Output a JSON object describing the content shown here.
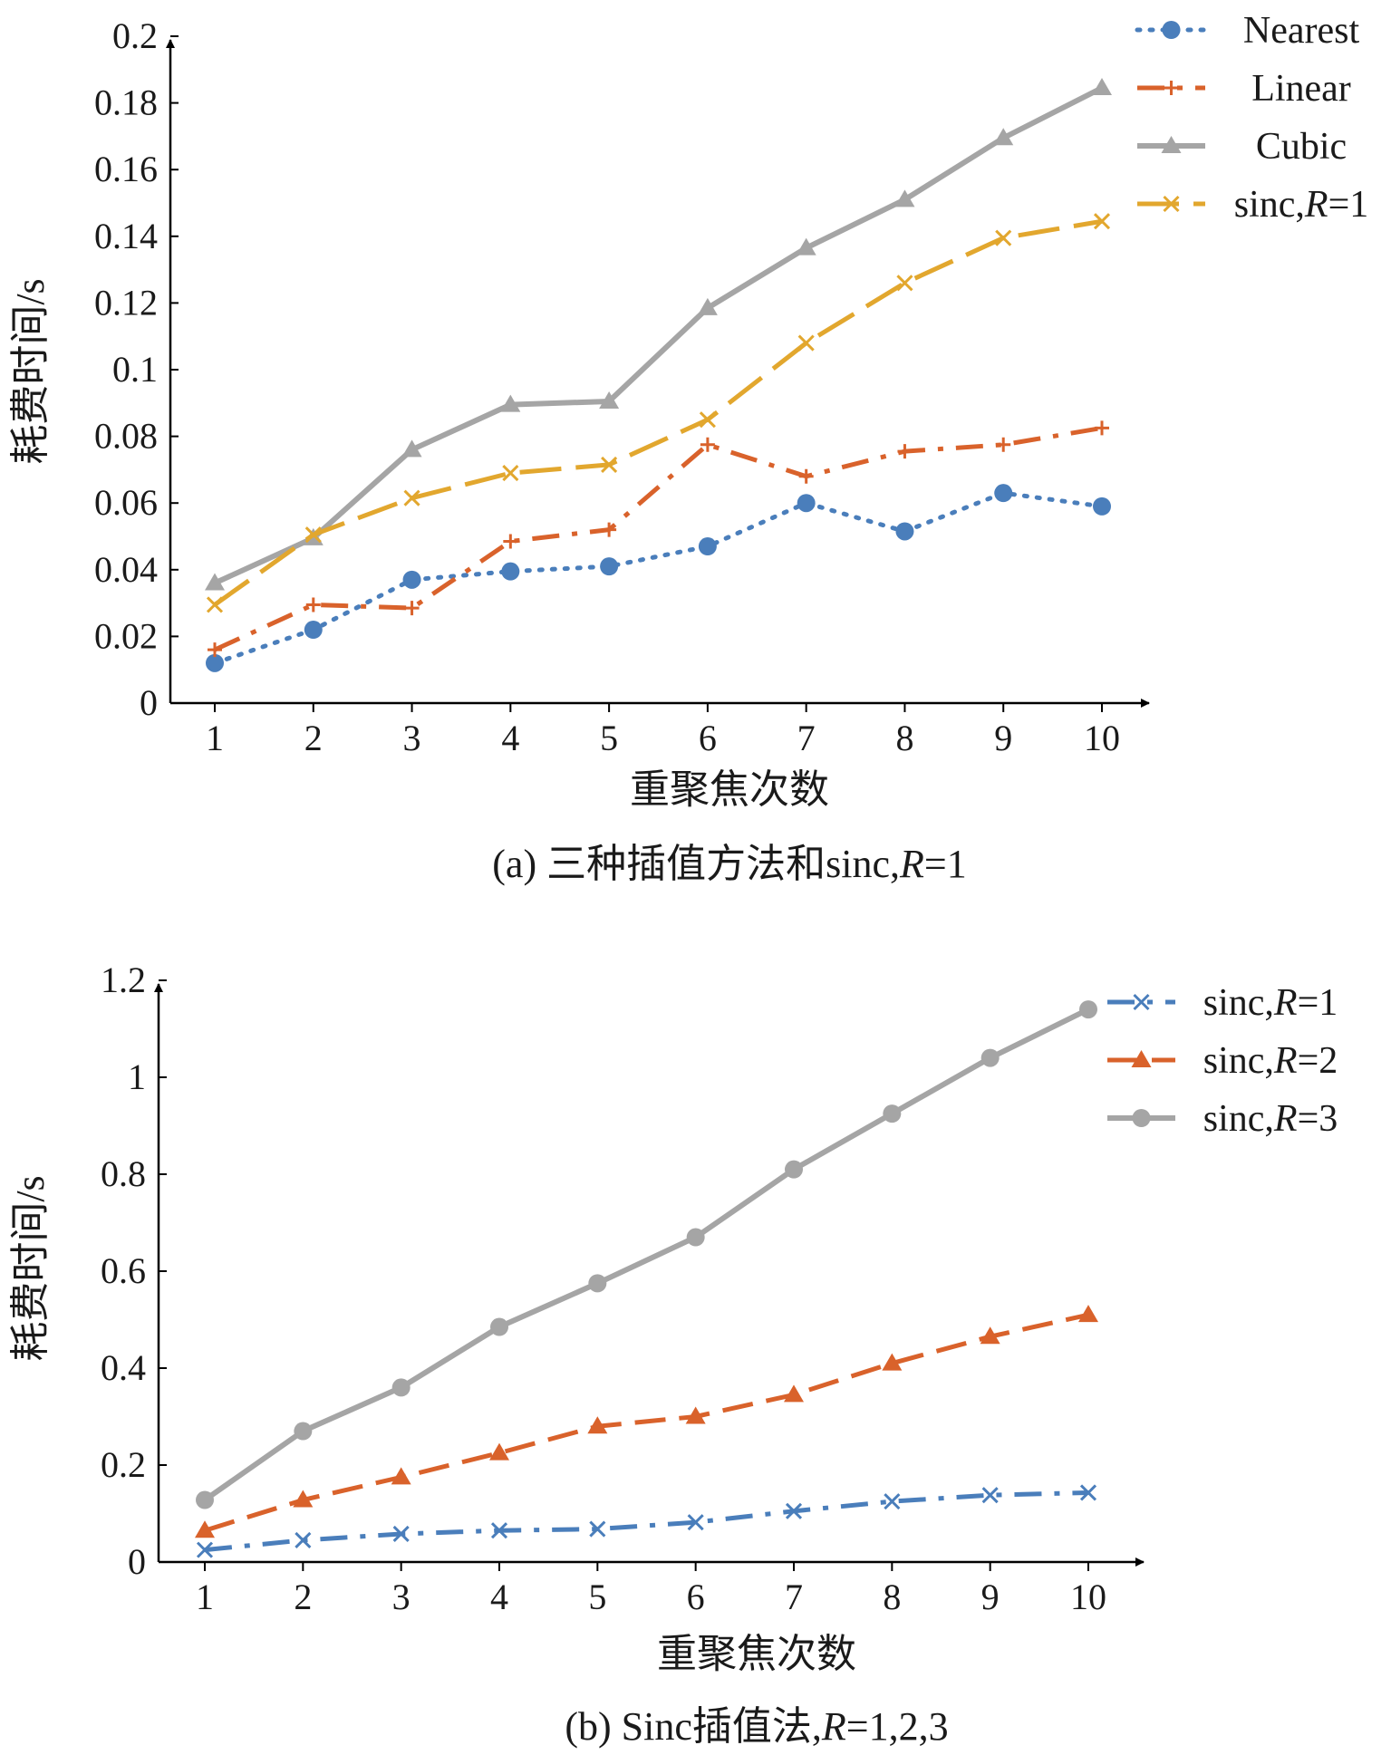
{
  "chart_data": [
    {
      "type": "line",
      "caption_prefix": "(a) 三种插值方法和sinc,",
      "caption_italic": "R",
      "caption_suffix": "=1",
      "xlabel": "重聚焦次数",
      "ylabel": "耗费时间/s",
      "categories": [
        "1",
        "2",
        "3",
        "4",
        "5",
        "6",
        "7",
        "8",
        "9",
        "10"
      ],
      "ylim": [
        0,
        0.2
      ],
      "yticks": [
        "0",
        "0.02",
        "0.04",
        "0.06",
        "0.08",
        "0.1",
        "0.12",
        "0.14",
        "0.16",
        "0.18",
        "0.2"
      ],
      "legend_position": "top-right",
      "series": [
        {
          "name": "Nearest",
          "name_prefix": "Nearest",
          "name_italic": "",
          "name_suffix": "",
          "color": "#4a7ebb",
          "dash": "dot",
          "marker": "circle",
          "values": [
            0.012,
            0.022,
            0.037,
            0.0395,
            0.041,
            0.047,
            0.06,
            0.0515,
            0.063,
            0.059
          ]
        },
        {
          "name": "Linear",
          "name_prefix": "Linear",
          "name_italic": "",
          "name_suffix": "",
          "color": "#d9622b",
          "dash": "dashdot",
          "marker": "plus",
          "values": [
            0.016,
            0.0295,
            0.0285,
            0.0485,
            0.052,
            0.0775,
            0.068,
            0.0755,
            0.0775,
            0.0825
          ]
        },
        {
          "name": "Cubic",
          "name_prefix": "Cubic",
          "name_italic": "",
          "name_suffix": "",
          "color": "#a5a5a5",
          "dash": "solid",
          "marker": "triangle",
          "values": [
            0.036,
            0.0495,
            0.076,
            0.0895,
            0.0905,
            0.1185,
            0.1365,
            0.151,
            0.1695,
            0.1845
          ]
        },
        {
          "name": "sinc,R=1",
          "name_prefix": "sinc,",
          "name_italic": "R",
          "name_suffix": "=1",
          "color": "#e2a72e",
          "dash": "longdash",
          "marker": "x",
          "values": [
            0.0295,
            0.0505,
            0.0615,
            0.069,
            0.0715,
            0.085,
            0.108,
            0.126,
            0.1395,
            0.1445
          ]
        }
      ]
    },
    {
      "type": "line",
      "caption_prefix": "(b)  Sinc插值法,",
      "caption_italic": "R",
      "caption_suffix": "=1,2,3",
      "xlabel": "重聚焦次数",
      "ylabel": "耗费时间/s",
      "categories": [
        "1",
        "2",
        "3",
        "4",
        "5",
        "6",
        "7",
        "8",
        "9",
        "10"
      ],
      "ylim": [
        0,
        1.2
      ],
      "yticks": [
        "0",
        "0.2",
        "0.4",
        "0.6",
        "0.8",
        "1",
        "1.2"
      ],
      "legend_position": "top-right",
      "series": [
        {
          "name": "sinc,R=1",
          "name_prefix": "sinc,",
          "name_italic": "R",
          "name_suffix": "=1",
          "color": "#4a7ebb",
          "dash": "dashdot",
          "marker": "x",
          "values": [
            0.025,
            0.045,
            0.058,
            0.065,
            0.068,
            0.082,
            0.105,
            0.125,
            0.138,
            0.143
          ]
        },
        {
          "name": "sinc,R=2",
          "name_prefix": "sinc,",
          "name_italic": "R",
          "name_suffix": "=2",
          "color": "#d9622b",
          "dash": "dash",
          "marker": "triangle",
          "values": [
            0.065,
            0.128,
            0.175,
            0.225,
            0.28,
            0.3,
            0.345,
            0.41,
            0.465,
            0.51
          ]
        },
        {
          "name": "sinc,R=3",
          "name_prefix": "sinc,",
          "name_italic": "R",
          "name_suffix": "=3",
          "color": "#a5a5a5",
          "dash": "solid",
          "marker": "circle",
          "values": [
            0.128,
            0.27,
            0.36,
            0.485,
            0.575,
            0.67,
            0.81,
            0.925,
            1.04,
            1.14
          ]
        }
      ]
    }
  ]
}
